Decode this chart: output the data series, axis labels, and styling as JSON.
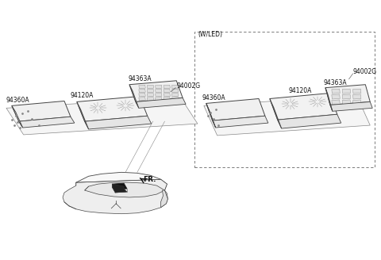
{
  "background_color": "#ffffff",
  "line_color": "#444444",
  "light_line_color": "#888888",
  "dashed_color": "#666666",
  "fill_light": "#f0f0f0",
  "fill_dark": "#cccccc",
  "black_fill": "#111111",
  "fr_label": "FR.",
  "wled_label": "(W/LED)",
  "label_94002G_left": "94002G",
  "label_94363A_left": "94363A",
  "label_94120A_left": "94120A",
  "label_94360A_left": "94360A",
  "label_94002G_right": "94002G",
  "label_94363A_right": "94363A",
  "label_94120A_right": "94120A",
  "label_94360A_right": "94360A",
  "font_size": 5.5,
  "font_size_fr": 6.5
}
